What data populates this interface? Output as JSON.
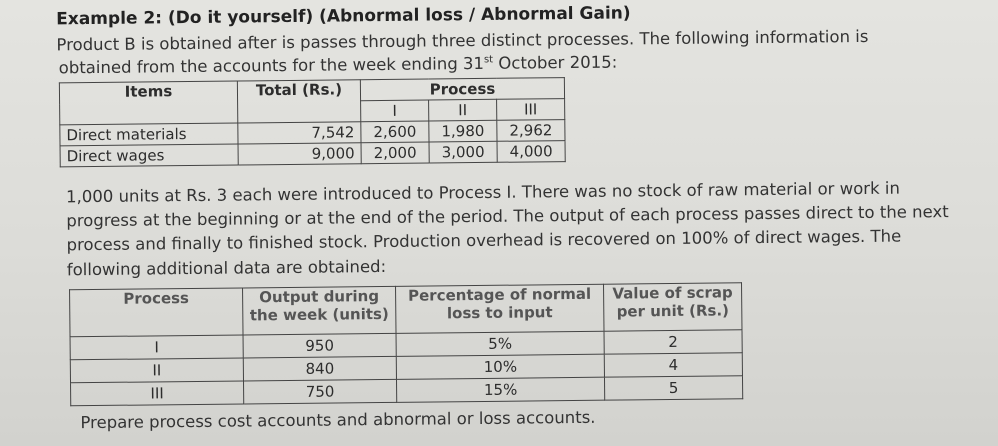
{
  "title": "Example 2: (Do it yourself) (Abnormal loss / Abnormal Gain)",
  "intro": {
    "line1": "Product B is obtained after is passes through three distinct processes. The following information is",
    "line2_before_sup": "obtained from the accounts for the week ending 31",
    "line2_sup": "st",
    "line2_after_sup": " October 2015:"
  },
  "table1": {
    "headers": {
      "items": "Items",
      "total": "Total (Rs.)",
      "process": "Process"
    },
    "subheaders": [
      "I",
      "II",
      "III"
    ],
    "rows": [
      {
        "item": "Direct materials",
        "total": "7,542",
        "p1": "2,600",
        "p2": "1,980",
        "p3": "2,962"
      },
      {
        "item": "Direct wages",
        "total": "9,000",
        "p1": "2,000",
        "p2": "3,000",
        "p3": "4,000"
      }
    ]
  },
  "paragraph": [
    "1,000 units at Rs. 3 each were introduced to Process I. There was no stock of raw material or work in",
    "progress at the beginning or at the end of the period. The output of each process passes direct to the next",
    "process and finally to finished stock. Production overhead is recovered on 100% of direct wages. The",
    "following additional data are obtained:"
  ],
  "table2": {
    "headers": {
      "process": "Process",
      "output_l1": "Output during",
      "output_l2": "the week (units)",
      "loss_l1": "Percentage of normal",
      "loss_l2": "loss to input",
      "scrap_l1": "Value of scrap",
      "scrap_l2": "per unit (Rs.)"
    },
    "rows": [
      {
        "process": "I",
        "output": "950",
        "loss": "5%",
        "scrap": "2"
      },
      {
        "process": "II",
        "output": "840",
        "loss": "10%",
        "scrap": "4"
      },
      {
        "process": "III",
        "output": "750",
        "loss": "15%",
        "scrap": "5"
      }
    ]
  },
  "instruction": "Prepare process cost accounts and abnormal or loss accounts."
}
